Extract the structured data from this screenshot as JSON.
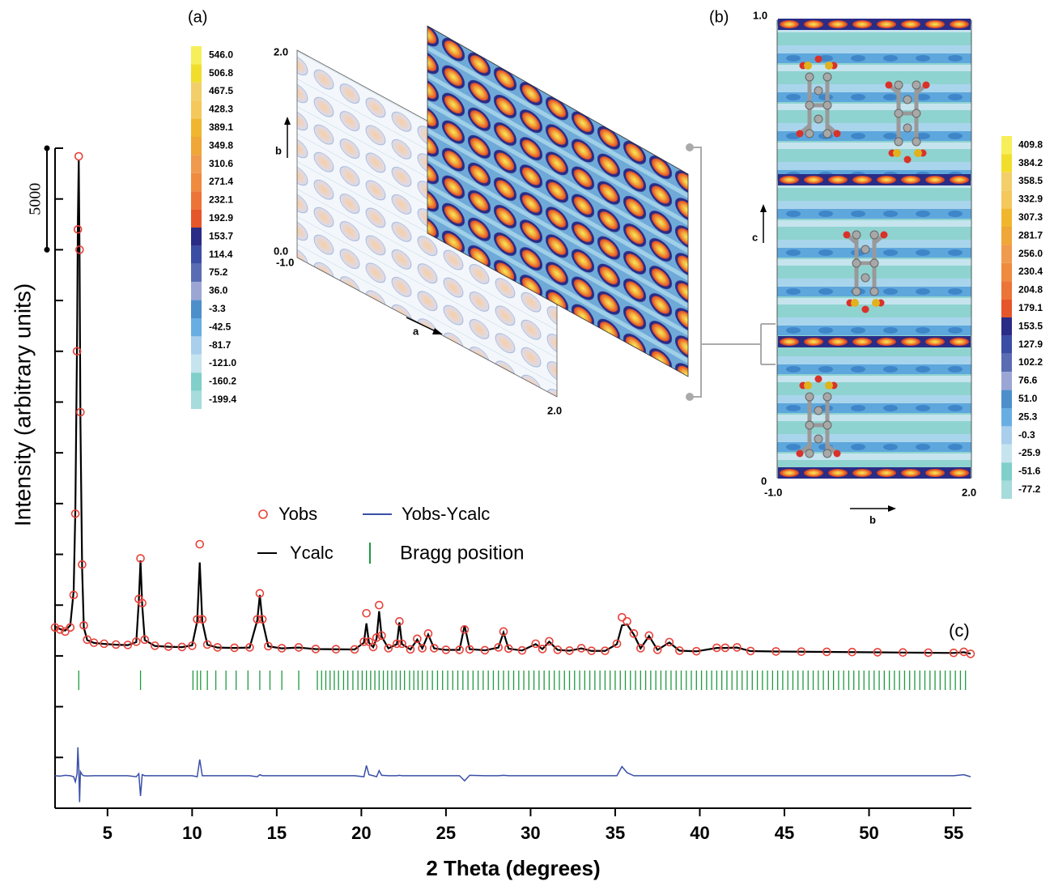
{
  "chart_data": {
    "type": "line",
    "x_label": "2 Theta (degrees)",
    "y_label": "Intensity (arbitrary units)",
    "panel": "(c)",
    "scale_bar": 5000,
    "xlim": [
      1.9,
      56.05
    ],
    "xticks": [
      5,
      10,
      15,
      20,
      25,
      30,
      35,
      40,
      45,
      50,
      55
    ],
    "ylim": [
      -7500,
      25000
    ],
    "yticks": [
      -7500,
      -5000,
      -2500,
      0,
      2500,
      5000,
      7500,
      10000,
      12500,
      15000,
      17500,
      20000,
      22500,
      25000
    ],
    "x": [
      1.9,
      2.2,
      2.5,
      2.8,
      3.0,
      3.1,
      3.2,
      3.25,
      3.3,
      3.35,
      3.4,
      3.5,
      3.6,
      3.8,
      4.2,
      4.8,
      5.5,
      6.2,
      6.7,
      6.85,
      6.95,
      7.05,
      7.2,
      7.8,
      8.6,
      9.4,
      10.0,
      10.3,
      10.45,
      10.6,
      10.9,
      11.5,
      12.5,
      13.4,
      13.85,
      14.0,
      14.15,
      14.5,
      15.3,
      16.3,
      17.3,
      18.5,
      19.6,
      20.15,
      20.3,
      20.45,
      20.7,
      20.9,
      21.05,
      21.2,
      21.6,
      22.1,
      22.25,
      22.4,
      22.9,
      23.3,
      23.6,
      23.95,
      24.3,
      25.0,
      25.8,
      26.1,
      26.4,
      27.3,
      28.1,
      28.4,
      28.7,
      29.5,
      30.3,
      30.7,
      31.1,
      31.6,
      32.3,
      33.0,
      33.6,
      34.4,
      35.1,
      35.4,
      35.7,
      36.1,
      36.5,
      37.0,
      37.5,
      38.2,
      38.8,
      39.8,
      41.0,
      41.5,
      42.2,
      43.0,
      44.5,
      46.0,
      47.5,
      49.0,
      50.5,
      52.0,
      53.5,
      55.0,
      55.6,
      56.0
    ],
    "series": [
      {
        "name": "Yobs",
        "color": "#e8413a",
        "marker": "circle",
        "values": [
          1400,
          1300,
          1200,
          1400,
          3000,
          7000,
          15000,
          21000,
          24600,
          20000,
          12000,
          4500,
          1500,
          800,
          650,
          600,
          560,
          540,
          700,
          2800,
          4800,
          2600,
          800,
          500,
          460,
          440,
          500,
          1800,
          5500,
          1800,
          560,
          420,
          400,
          420,
          1800,
          3080,
          1800,
          480,
          380,
          420,
          340,
          330,
          320,
          700,
          2100,
          700,
          440,
          900,
          2500,
          1000,
          380,
          600,
          1700,
          600,
          320,
          840,
          380,
          1100,
          380,
          300,
          300,
          1300,
          320,
          280,
          420,
          1200,
          360,
          270,
          600,
          340,
          720,
          300,
          260,
          380,
          250,
          250,
          600,
          1900,
          1700,
          1100,
          380,
          1000,
          300,
          680,
          260,
          230,
          400,
          400,
          420,
          240,
          220,
          210,
          200,
          190,
          180,
          170,
          160,
          150,
          200,
          100
        ]
      },
      {
        "name": "Ycalc",
        "color": "#000000",
        "values": [
          1450,
          1320,
          1250,
          1500,
          3200,
          7200,
          15500,
          21500,
          24400,
          19500,
          11500,
          4300,
          1400,
          780,
          640,
          590,
          550,
          530,
          680,
          2700,
          4700,
          2500,
          780,
          490,
          450,
          430,
          520,
          1700,
          4600,
          1700,
          550,
          410,
          390,
          410,
          1750,
          3000,
          1750,
          470,
          370,
          410,
          335,
          325,
          315,
          650,
          1600,
          650,
          430,
          850,
          2200,
          950,
          370,
          580,
          1650,
          580,
          315,
          800,
          370,
          1050,
          370,
          295,
          295,
          1500,
          330,
          275,
          410,
          1150,
          355,
          265,
          580,
          335,
          700,
          295,
          255,
          370,
          245,
          245,
          580,
          1500,
          1550,
          1050,
          370,
          980,
          295,
          660,
          255,
          225,
          390,
          390,
          410,
          235,
          215,
          205,
          195,
          185,
          175,
          165,
          155,
          145,
          180,
          110
        ]
      },
      {
        "name": "Yobs-Ycalc",
        "color": "#3a4fa8",
        "values": [
          -5900,
          -5920,
          -5880,
          -5900,
          -5950,
          -6200,
          -5800,
          -4500,
          -5500,
          -7200,
          -5700,
          -5850,
          -5900,
          -5910,
          -5900,
          -5900,
          -5900,
          -5900,
          -5950,
          -5800,
          -6900,
          -5850,
          -5900,
          -5900,
          -5900,
          -5900,
          -5900,
          -5950,
          -5100,
          -5900,
          -5900,
          -5900,
          -5900,
          -5900,
          -5950,
          -5850,
          -5900,
          -5900,
          -5900,
          -5900,
          -5900,
          -5900,
          -5900,
          -5950,
          -5400,
          -5850,
          -5900,
          -5950,
          -5650,
          -5880,
          -5900,
          -5900,
          -5880,
          -5900,
          -5900,
          -5900,
          -5900,
          -5900,
          -5900,
          -5900,
          -5900,
          -6150,
          -5880,
          -5900,
          -5900,
          -5880,
          -5900,
          -5900,
          -5900,
          -5900,
          -5900,
          -5900,
          -5900,
          -5900,
          -5900,
          -5900,
          -5900,
          -5450,
          -5750,
          -5900,
          -5900,
          -5900,
          -5900,
          -5900,
          -5900,
          -5900,
          -5900,
          -5900,
          -5900,
          -5900,
          -5900,
          -5900,
          -5900,
          -5900,
          -5900,
          -5900,
          -5900,
          -5900,
          -5850,
          -5950
        ]
      }
    ],
    "bragg": {
      "name": "Bragg position",
      "color": "#1f9a3f",
      "positions": [
        3.3,
        6.95,
        10.05,
        10.3,
        10.5,
        10.9,
        11.4,
        12.0,
        12.6,
        13.3,
        14.0,
        14.6,
        15.3,
        16.3,
        17.4,
        17.65,
        17.9,
        18.15,
        18.4,
        18.65,
        18.95,
        19.2,
        19.5,
        19.8,
        20.05,
        20.3,
        20.55,
        20.8,
        21.05,
        21.3,
        21.55,
        21.8,
        22.05,
        22.3,
        22.55,
        22.85,
        23.1,
        23.35,
        23.6,
        23.9,
        24.2,
        24.5,
        24.8,
        25.1,
        25.4,
        25.7,
        26.0,
        26.3,
        26.6,
        26.9,
        27.2,
        27.5,
        27.8,
        28.1,
        28.4,
        28.7,
        29.0,
        29.3,
        29.6,
        29.9,
        30.2,
        30.5,
        30.8,
        31.1,
        31.4,
        31.7,
        32.0,
        32.3,
        32.6,
        32.9,
        33.2,
        33.5,
        33.8,
        34.1,
        34.4,
        34.7,
        35.0,
        35.3,
        35.6,
        35.9,
        36.2,
        36.5,
        36.8,
        37.1,
        37.4,
        37.7,
        38.0,
        38.3,
        38.6,
        38.9,
        39.2,
        39.5,
        39.8,
        40.1,
        40.4,
        40.7,
        41.0,
        41.3,
        41.6,
        41.9,
        42.2,
        42.5,
        42.8,
        43.1,
        43.4,
        43.7,
        44.0,
        44.3,
        44.6,
        44.9,
        45.2,
        45.5,
        45.8,
        46.1,
        46.4,
        46.7,
        47.0,
        47.3,
        47.6,
        47.9,
        48.2,
        48.5,
        48.8,
        49.1,
        49.4,
        49.7,
        50.0,
        50.3,
        50.6,
        50.9,
        51.2,
        51.5,
        51.8,
        52.1,
        52.4,
        52.7,
        53.0,
        53.3,
        53.6,
        53.9,
        54.2,
        54.5,
        54.8,
        55.1,
        55.4,
        55.7
      ]
    }
  },
  "insets": {
    "a": {
      "panel": "(a)",
      "v_top": "2.0",
      "v_bottom": "0.0",
      "h_left": "-1.0",
      "h_right": "2.0",
      "v_axis": "b",
      "h_axis": "a",
      "colorbar": {
        "values": [
          {
            "value": 546,
            "label": "546.0"
          },
          506.8,
          467.5,
          428.3,
          389.1,
          349.8,
          310.6,
          271.4,
          232.1,
          192.9,
          153.7,
          114.4,
          75.2,
          {
            "value": 36,
            "label": "36.0"
          },
          -3.3,
          -42.5,
          -81.7,
          {
            "value": -121,
            "label": "-121.0"
          },
          -160.2,
          -199.4
        ],
        "colors": [
          "#f7ef5a",
          "#f1de2c",
          "#f3cf6a",
          "#f4c85a",
          "#f0b72e",
          "#efa738",
          "#f09a4e",
          "#ef8a3e",
          "#ec7436",
          "#e5562a",
          "#2a2c86",
          "#3a4ea3",
          "#5a6db4",
          "#9ba6d4",
          "#4d8fcb",
          "#68aee2",
          "#a9cfec",
          "#c5e4ee",
          "#80cfcb",
          "#a6dcdb"
        ]
      }
    },
    "b": {
      "panel": "(b)",
      "v_top": "1.0",
      "v_bottom": "0",
      "h_left": "-1.0",
      "h_right": "2.0",
      "v_axis": "c",
      "h_axis": "b",
      "colorbar": {
        "values": [
          409.8,
          384.2,
          358.5,
          332.9,
          307.3,
          281.7,
          {
            "value": 256,
            "label": "256.0"
          },
          230.4,
          204.8,
          179.1,
          153.5,
          127.9,
          102.2,
          76.6,
          {
            "value": 51,
            "label": "51.0"
          },
          25.3,
          -0.3,
          -25.9,
          -51.6,
          -77.2
        ],
        "colors": [
          "#f7ef5a",
          "#f1de2c",
          "#f3cf6a",
          "#f4c85a",
          "#f0b72e",
          "#efa738",
          "#f09a4e",
          "#ef8a3e",
          "#ec7436",
          "#e5562a",
          "#2a2c86",
          "#3a4ea3",
          "#5a6db4",
          "#9ba6d4",
          "#4d8fcb",
          "#68aee2",
          "#a9cfec",
          "#c5e4ee",
          "#80cfcb",
          "#a6dcdb"
        ]
      }
    }
  }
}
